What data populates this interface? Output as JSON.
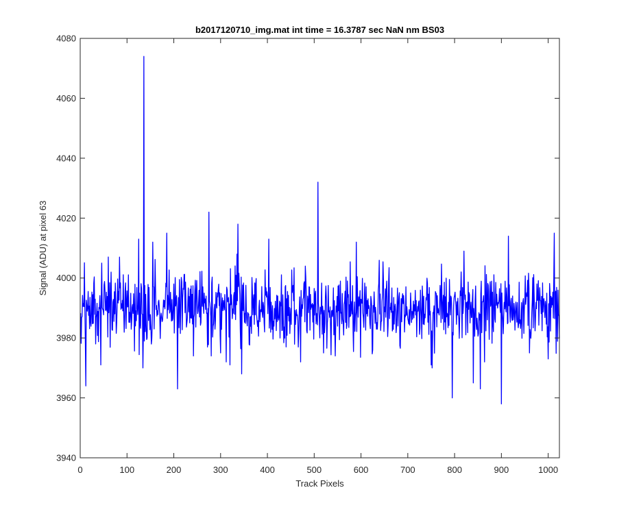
{
  "chart_data": {
    "type": "line",
    "title": "b2017120710_img.mat int time = 16.3787 sec  NaN nm BS03",
    "xlabel": "Track Pixels",
    "ylabel": "Signal (ADU) at pixel 63",
    "xlim": [
      0,
      1024
    ],
    "ylim": [
      3940,
      4080
    ],
    "xticks": [
      0,
      100,
      200,
      300,
      400,
      500,
      600,
      700,
      800,
      900,
      1000
    ],
    "yticks": [
      3940,
      3960,
      3980,
      4000,
      4020,
      4040,
      4060,
      4080
    ],
    "grid": false,
    "legend": "none",
    "line_color": "#0000ff",
    "series": [
      {
        "x_start": 1,
        "x_step": 1,
        "count": 1024,
        "baseline": 3990,
        "noise_sd": 6,
        "seed": 20171207,
        "features": [
          {
            "x": 12,
            "y": 3964
          },
          {
            "x": 33,
            "y": 3978
          },
          {
            "x": 44,
            "y": 3971
          },
          {
            "x": 46,
            "y": 4005
          },
          {
            "x": 66,
            "y": 4002
          },
          {
            "x": 84,
            "y": 4007
          },
          {
            "x": 125,
            "y": 4013
          },
          {
            "x": 134,
            "y": 3970
          },
          {
            "x": 136,
            "y": 4074
          },
          {
            "x": 143,
            "y": 3980
          },
          {
            "x": 155,
            "y": 4012
          },
          {
            "x": 185,
            "y": 4015
          },
          {
            "x": 200,
            "y": 3998
          },
          {
            "x": 208,
            "y": 3963
          },
          {
            "x": 242,
            "y": 3974
          },
          {
            "x": 275,
            "y": 4022
          },
          {
            "x": 280,
            "y": 3974
          },
          {
            "x": 300,
            "y": 3975
          },
          {
            "x": 320,
            "y": 3971
          },
          {
            "x": 337,
            "y": 4018
          },
          {
            "x": 345,
            "y": 3968
          },
          {
            "x": 403,
            "y": 4013
          },
          {
            "x": 440,
            "y": 3977
          },
          {
            "x": 471,
            "y": 3972
          },
          {
            "x": 508,
            "y": 4032
          },
          {
            "x": 520,
            "y": 3975
          },
          {
            "x": 545,
            "y": 3974
          },
          {
            "x": 590,
            "y": 4012
          },
          {
            "x": 625,
            "y": 3976
          },
          {
            "x": 750,
            "y": 3971
          },
          {
            "x": 752,
            "y": 3970
          },
          {
            "x": 795,
            "y": 3960
          },
          {
            "x": 820,
            "y": 4009
          },
          {
            "x": 840,
            "y": 3965
          },
          {
            "x": 855,
            "y": 3963
          },
          {
            "x": 900,
            "y": 3958
          },
          {
            "x": 915,
            "y": 4014
          },
          {
            "x": 960,
            "y": 3975
          },
          {
            "x": 1000,
            "y": 3973
          },
          {
            "x": 1013,
            "y": 4015
          }
        ]
      }
    ]
  }
}
